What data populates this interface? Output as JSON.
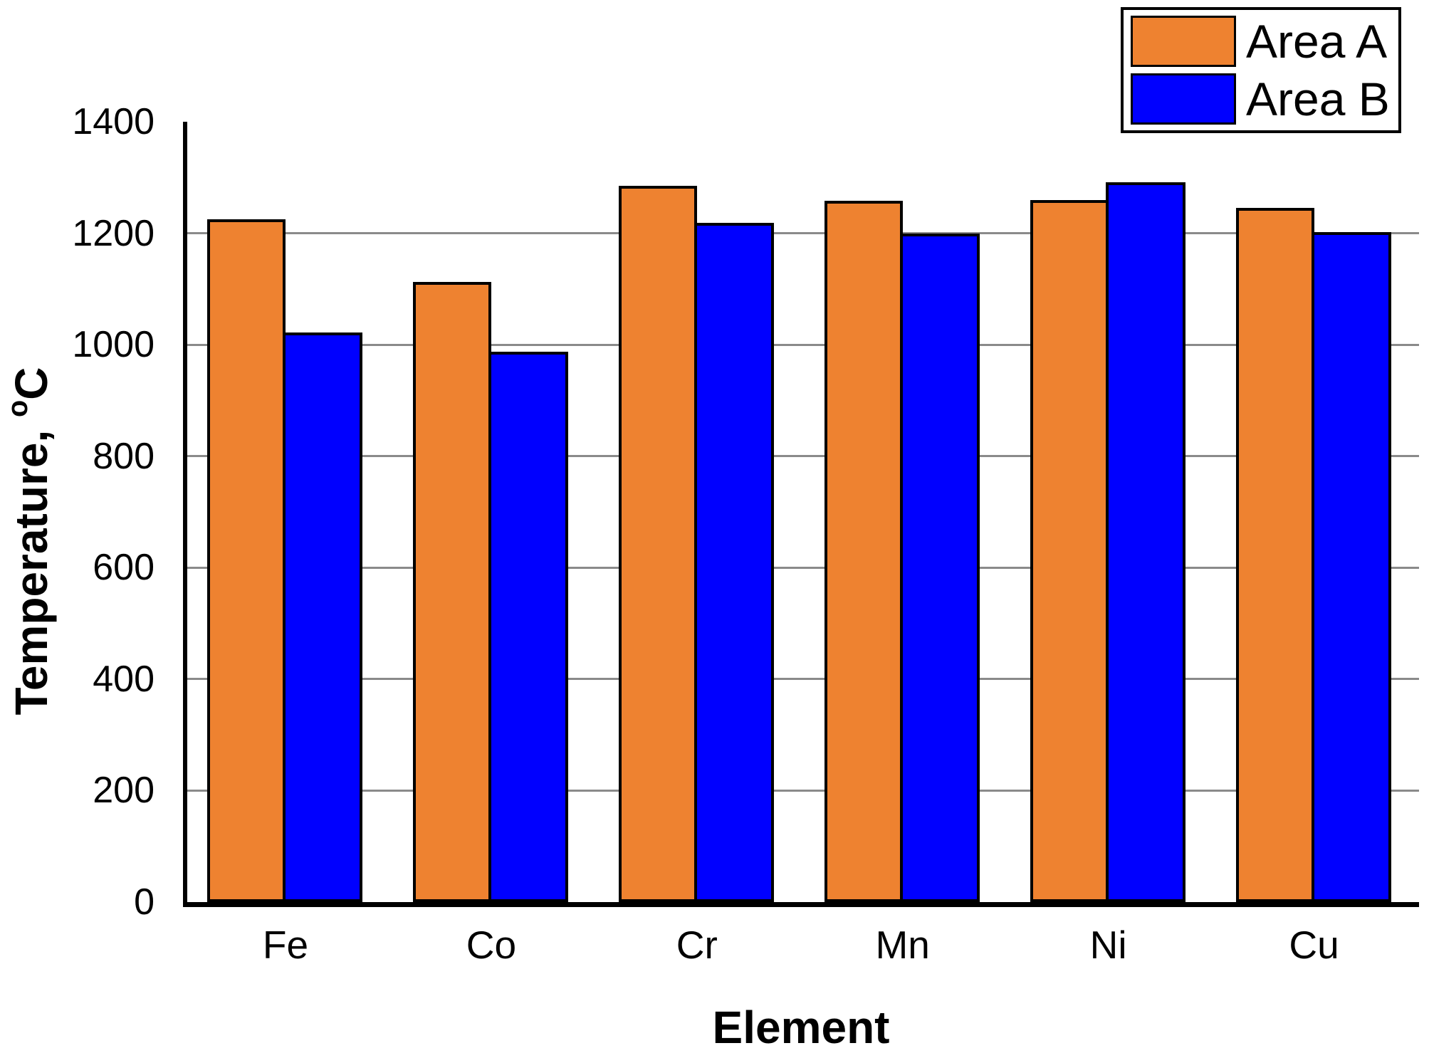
{
  "chart_data": {
    "type": "bar",
    "title": "",
    "categories": [
      "Fe",
      "Co",
      "Cr",
      "Mn",
      "Ni",
      "Cu"
    ],
    "series": [
      {
        "name": "Area A",
        "color": "#EE8230",
        "values": [
          1225,
          1113,
          1285,
          1258,
          1260,
          1245
        ]
      },
      {
        "name": "Area B",
        "color": "#0000FF",
        "values": [
          1022,
          988,
          1219,
          1200,
          1292,
          1202
        ]
      }
    ],
    "xlabel": "Element",
    "ylabel": {
      "prefix": "Temperature, ",
      "degree_symbol": "o",
      "unit": "C"
    },
    "ylim": [
      0,
      1400
    ],
    "yticks": [
      0,
      200,
      400,
      600,
      800,
      1000,
      1200,
      1400
    ],
    "gridlines_at": [
      200,
      400,
      600,
      800,
      1000,
      1200
    ],
    "legend": {
      "position": "top-right",
      "items": [
        "Area A",
        "Area B"
      ]
    },
    "colors": {
      "background": "#FFFFFF",
      "axis": "#000000",
      "gridline": "#8A8A8A",
      "bar_border": "#000000",
      "text": "#000000"
    }
  }
}
